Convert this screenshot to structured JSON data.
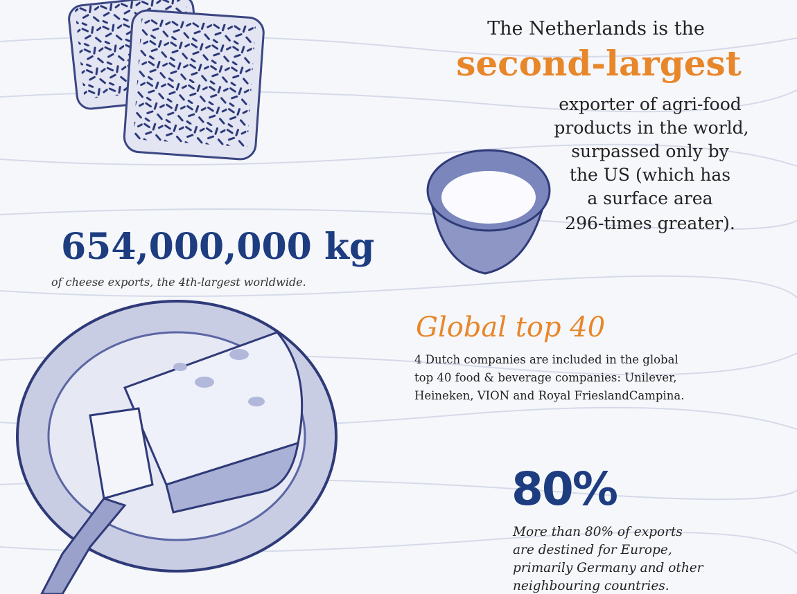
{
  "headline": {
    "intro": "The Netherlands is the",
    "highlight": "second-largest",
    "lines": [
      "exporter of agri-food",
      "products in the world,",
      "surpassed only by",
      "the US (which has",
      "a surface area",
      "296-times greater)."
    ]
  },
  "cheese": {
    "figure": "654,000,000 kg",
    "caption": "of cheese exports, the 4th-largest worldwide."
  },
  "top40": {
    "title": "Global top 40",
    "lines": [
      "4 Dutch companies are included in the global",
      "top 40 food & beverage companies: Unilever,",
      "Heineken, VION and Royal FrieslandCampina."
    ]
  },
  "europe": {
    "figure": "80%",
    "lines": [
      "More than 80% of exports",
      "are destined for Europe,",
      "primarily Germany and other",
      "neighbouring countries."
    ]
  }
}
